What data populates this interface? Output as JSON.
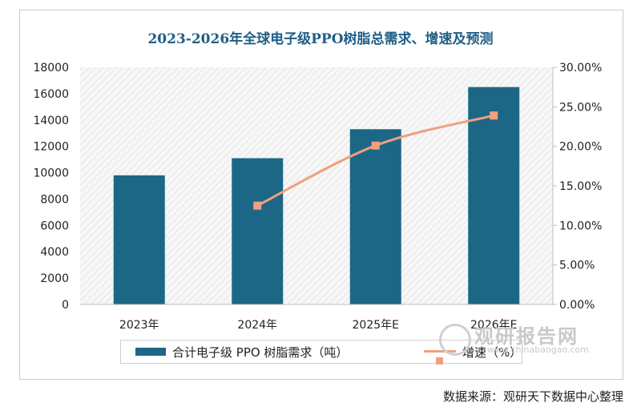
{
  "chart_data": {
    "type": "bar",
    "title": "2023-2026年全球电子级PPO树脂总需求、增速及预测",
    "categories": [
      "2023年",
      "2024年",
      "2025年E",
      "2026年E"
    ],
    "series": [
      {
        "name": "合计电子级 PPO 树脂需求（吨）",
        "type": "bar",
        "axis": "left",
        "color": "#1d6786",
        "values": [
          9800,
          11100,
          13300,
          16500
        ]
      },
      {
        "name": "增速（%）",
        "type": "line",
        "axis": "right",
        "color": "#f0a07c",
        "values": [
          null,
          12.5,
          20.1,
          23.9
        ]
      }
    ],
    "left_axis": {
      "ylim": [
        0,
        18000
      ],
      "ticks": [
        "0",
        "2000",
        "4000",
        "6000",
        "8000",
        "10000",
        "12000",
        "14000",
        "16000",
        "18000"
      ]
    },
    "right_axis": {
      "ylim": [
        0,
        30
      ],
      "ticks": [
        "0.00%",
        "5.00%",
        "10.00%",
        "15.00%",
        "20.00%",
        "25.00%",
        "30.00%"
      ]
    },
    "legend": "bottom",
    "grid": false
  },
  "source_text": "数据来源：观研天下数据中心整理",
  "watermark": {
    "brand": "观研报告网",
    "url": "www.chinabaogao.com"
  }
}
